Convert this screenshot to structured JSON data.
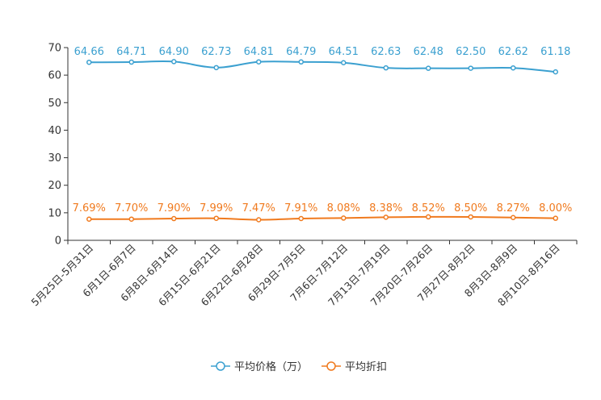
{
  "chart_data": {
    "type": "line",
    "categories": [
      "5月25日-5月31日",
      "6月1日-6月7日",
      "6月8日-6月14日",
      "6月15日-6月21日",
      "6月22日-6月28日",
      "6月29日-7月5日",
      "7月6日-7月12日",
      "7月13日-7月19日",
      "7月20日-7月26日",
      "7月27日-8月2日",
      "8月3日-8月9日",
      "8月10日-8月16日"
    ],
    "ylim": [
      0,
      70
    ],
    "yticks": [
      0,
      10,
      20,
      30,
      40,
      50,
      60,
      70
    ],
    "legend_position": "bottom-center",
    "series": [
      {
        "name": "平均价格（万）",
        "color": "#3ba0d0",
        "values": [
          64.66,
          64.71,
          64.9,
          62.73,
          64.81,
          64.79,
          64.51,
          62.63,
          62.48,
          62.5,
          62.62,
          61.18
        ],
        "labels": [
          "64.66",
          "64.71",
          "64.90",
          "62.73",
          "64.81",
          "64.79",
          "64.51",
          "62.63",
          "62.48",
          "62.50",
          "62.62",
          "61.18"
        ]
      },
      {
        "name": "平均折扣",
        "color": "#f07a1e",
        "values": [
          7.69,
          7.7,
          7.9,
          7.99,
          7.47,
          7.91,
          8.08,
          8.38,
          8.52,
          8.5,
          8.27,
          8.0
        ],
        "labels": [
          "7.69%",
          "7.70%",
          "7.90%",
          "7.99%",
          "7.47%",
          "7.91%",
          "8.08%",
          "8.38%",
          "8.52%",
          "8.50%",
          "8.27%",
          "8.00%"
        ]
      }
    ]
  }
}
